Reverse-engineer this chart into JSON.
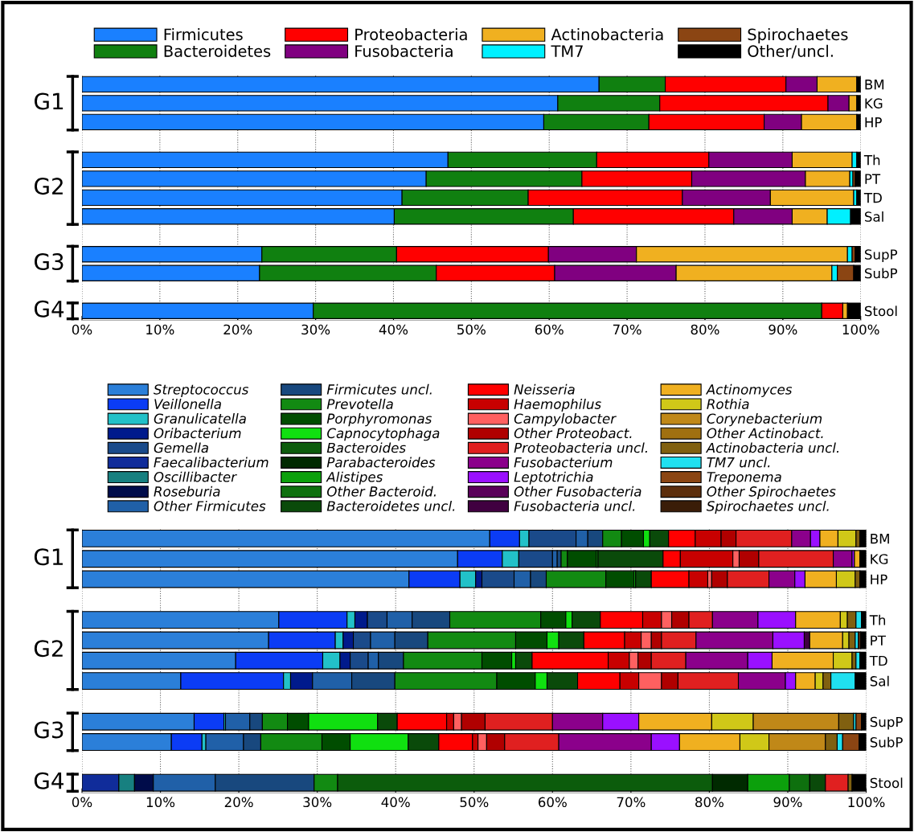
{
  "chart_data": [
    {
      "type": "bar",
      "orientation": "horizontal",
      "stacked": true,
      "grid": "x",
      "legend": "top",
      "categories": [
        "BM",
        "KG",
        "HP",
        null,
        "Th",
        "PT",
        "TD",
        "Sal",
        null,
        "SupP",
        "SubP",
        null,
        "Stool"
      ],
      "xlim": [
        0,
        100
      ],
      "xticks": [
        {
          "value": 0,
          "label": "0%"
        },
        {
          "value": 10,
          "label": "10%"
        },
        {
          "value": 20,
          "label": "20%"
        },
        {
          "value": 30,
          "label": "30%"
        },
        {
          "value": 40,
          "label": "40%"
        },
        {
          "value": 50,
          "label": "50%"
        },
        {
          "value": 60,
          "label": "60%"
        },
        {
          "value": 70,
          "label": "70%"
        },
        {
          "value": 80,
          "label": "80%"
        },
        {
          "value": 90,
          "label": "90%"
        },
        {
          "value": 100,
          "label": "100%"
        }
      ],
      "annotations": [
        "G1",
        "G2",
        "G3",
        "G4"
      ],
      "series": [
        {
          "name": "Firmicutes",
          "color": "#1a80ff",
          "values": [
            66.4,
            61.1,
            59.3,
            null,
            47.0,
            44.2,
            41.1,
            40.1,
            null,
            23.1,
            22.8,
            null,
            29.7
          ]
        },
        {
          "name": "Bacteroidetes",
          "color": "#108010",
          "values": [
            8.5,
            13.1,
            13.5,
            null,
            19.1,
            20.0,
            16.2,
            23.0,
            null,
            17.3,
            22.7,
            null,
            65.3
          ]
        },
        {
          "name": "Proteobacteria",
          "color": "#ff0000",
          "values": [
            15.5,
            21.6,
            14.8,
            null,
            14.4,
            14.1,
            19.8,
            20.6,
            null,
            19.5,
            15.2,
            null,
            2.7
          ]
        },
        {
          "name": "Fusobacteria",
          "color": "#800080",
          "values": [
            4.0,
            2.7,
            4.8,
            null,
            10.7,
            14.6,
            11.3,
            7.5,
            null,
            11.3,
            15.6,
            null,
            0
          ]
        },
        {
          "name": "Actinobacteria",
          "color": "#f0b020",
          "values": [
            5.1,
            1.0,
            7.1,
            null,
            7.7,
            5.7,
            10.7,
            4.5,
            null,
            27.1,
            20.0,
            null,
            0.6
          ]
        },
        {
          "name": "TM7",
          "color": "#00f0ff",
          "values": [
            0,
            0,
            0,
            null,
            0.6,
            0.4,
            0.4,
            3.0,
            null,
            0.6,
            0.7,
            null,
            0
          ]
        },
        {
          "name": "Spirochaetes",
          "color": "#8b4513",
          "values": [
            0,
            0,
            0,
            null,
            0,
            0.3,
            0,
            0,
            null,
            0.4,
            2.1,
            null,
            0
          ]
        },
        {
          "name": "Other/uncl.",
          "color": "#000000",
          "values": [
            0.5,
            0.5,
            0.5,
            null,
            0.5,
            0.7,
            0.5,
            1.3,
            null,
            0.7,
            0.9,
            null,
            1.7
          ]
        }
      ]
    },
    {
      "type": "bar",
      "orientation": "horizontal",
      "stacked": true,
      "grid": "x",
      "legend": "top",
      "categories": [
        "BM",
        "KG",
        "HP",
        null,
        "Th",
        "PT",
        "TD",
        "Sal",
        null,
        "SupP",
        "SubP",
        null,
        "Stool"
      ],
      "xlim": [
        0,
        100
      ],
      "xticks": [
        {
          "value": 0,
          "label": "0%"
        },
        {
          "value": 10,
          "label": "10%"
        },
        {
          "value": 20,
          "label": "20%"
        },
        {
          "value": 30,
          "label": "30%"
        },
        {
          "value": 40,
          "label": "40%"
        },
        {
          "value": 50,
          "label": "50%"
        },
        {
          "value": 60,
          "label": "60%"
        },
        {
          "value": 70,
          "label": "70%"
        },
        {
          "value": 80,
          "label": "80%"
        },
        {
          "value": 90,
          "label": "90%"
        },
        {
          "value": 100,
          "label": "100%"
        }
      ],
      "annotations": [
        "G1",
        "G2",
        "G3",
        "G4"
      ],
      "series": [
        {
          "name": "Streptococcus",
          "color": "#2b7fd9",
          "values": [
            52.0,
            47.9,
            41.7,
            null,
            25.1,
            23.8,
            19.6,
            12.6,
            null,
            14.3,
            11.4,
            null,
            0
          ]
        },
        {
          "name": "Veillonella",
          "color": "#0b3cf5",
          "values": [
            3.8,
            5.7,
            6.5,
            null,
            8.7,
            8.5,
            11.1,
            13.1,
            null,
            3.8,
            3.9,
            null,
            0
          ]
        },
        {
          "name": "Granulicatella",
          "color": "#22c1c8",
          "values": [
            1.2,
            2.1,
            2.0,
            null,
            1.0,
            1.0,
            2.2,
            0.9,
            null,
            0.2,
            0.5,
            null,
            0
          ]
        },
        {
          "name": "Oribacterium",
          "color": "#001a8c",
          "values": [
            0,
            0,
            0.8,
            null,
            1.6,
            1.3,
            1.3,
            2.8,
            null,
            0,
            0,
            null,
            0
          ]
        },
        {
          "name": "Gemella",
          "color": "#1a4a8a",
          "values": [
            6.0,
            4.3,
            4.1,
            null,
            2.5,
            2.2,
            2.3,
            0,
            null,
            0,
            0,
            null,
            0
          ]
        },
        {
          "name": "Faecalibacterium",
          "color": "#102c9a",
          "values": [
            0,
            0,
            0,
            null,
            0,
            0,
            0,
            0,
            null,
            0,
            0,
            null,
            4.7
          ]
        },
        {
          "name": "Oscillibacter",
          "color": "#178080",
          "values": [
            0,
            0,
            0,
            null,
            0,
            0,
            0,
            0,
            null,
            0,
            0,
            null,
            2.0
          ]
        },
        {
          "name": "Roseburia",
          "color": "#000c4a",
          "values": [
            0,
            0,
            0,
            null,
            0,
            0,
            0,
            0,
            null,
            0,
            0,
            null,
            2.4
          ]
        },
        {
          "name": "Other Firmicutes",
          "color": "#2060a8",
          "values": [
            1.5,
            0.6,
            2.1,
            null,
            3.2,
            3.1,
            1.3,
            5.0,
            null,
            3.1,
            4.8,
            null,
            7.9
          ]
        },
        {
          "name": "Firmicutes uncl.",
          "color": "#18487e",
          "values": [
            1.9,
            0.5,
            2.0,
            null,
            4.8,
            4.2,
            3.2,
            5.5,
            null,
            1.6,
            2.2,
            null,
            12.6
          ]
        },
        {
          "name": "Prevotella",
          "color": "#128a12",
          "values": [
            2.4,
            0.8,
            7.6,
            null,
            11.6,
            11.2,
            10.0,
            13.0,
            null,
            3.2,
            7.8,
            null,
            3.0
          ]
        },
        {
          "name": "Porphyromonas",
          "color": "#004d00",
          "values": [
            2.8,
            3.7,
            3.6,
            null,
            3.2,
            4.0,
            3.8,
            4.9,
            null,
            2.7,
            3.6,
            null,
            0
          ]
        },
        {
          "name": "Capnocytophaga",
          "color": "#10e010",
          "values": [
            0.8,
            0.2,
            0.2,
            null,
            0.8,
            1.5,
            0.5,
            1.5,
            null,
            8.8,
            7.4,
            null,
            0
          ]
        },
        {
          "name": "Bacteroides",
          "color": "#0c5c0c",
          "values": [
            0,
            0,
            0,
            null,
            0,
            0,
            0,
            0,
            null,
            0,
            0,
            null,
            47.8
          ]
        },
        {
          "name": "Parabacteroides",
          "color": "#002a00",
          "values": [
            0,
            0,
            0,
            null,
            0,
            0,
            0,
            0,
            null,
            0,
            0,
            null,
            4.5
          ]
        },
        {
          "name": "Alistipes",
          "color": "#0ca00c",
          "values": [
            0,
            0,
            0,
            null,
            0,
            0,
            0,
            0,
            null,
            0,
            0,
            null,
            5.3
          ]
        },
        {
          "name": "Other Bacteroid.",
          "color": "#0e700e",
          "values": [
            0,
            0,
            0,
            null,
            0,
            0,
            0,
            0,
            null,
            0,
            0,
            null,
            2.6
          ]
        },
        {
          "name": "Bacteroidetes uncl.",
          "color": "#0a4a0a",
          "values": [
            2.4,
            8.3,
            2.0,
            null,
            3.6,
            3.2,
            2.1,
            3.9,
            null,
            2.5,
            3.9,
            null,
            2.0
          ]
        },
        {
          "name": "Neisseria",
          "color": "#ff0000",
          "values": [
            3.4,
            2.2,
            4.8,
            null,
            5.4,
            5.2,
            9.7,
            5.4,
            null,
            6.3,
            4.3,
            null,
            0
          ]
        },
        {
          "name": "Haemophilus",
          "color": "#c80000",
          "values": [
            3.3,
            6.7,
            2.4,
            null,
            2.4,
            2.1,
            2.7,
            2.4,
            null,
            0.9,
            0.7,
            null,
            0
          ]
        },
        {
          "name": "Campylobacter",
          "color": "#ff6060",
          "values": [
            0,
            0.8,
            0.5,
            null,
            1.3,
            1.3,
            1.1,
            2.9,
            null,
            1.0,
            1.1,
            null,
            0
          ]
        },
        {
          "name": "Other Proteobact.",
          "color": "#b00000",
          "values": [
            1.9,
            2.5,
            2.0,
            null,
            2.2,
            1.3,
            1.7,
            2.1,
            null,
            3.0,
            2.3,
            null,
            0
          ]
        },
        {
          "name": "Proteobacteria uncl.",
          "color": "#e02020",
          "values": [
            7.1,
            9.5,
            5.3,
            null,
            3.0,
            4.4,
            4.4,
            7.7,
            null,
            8.6,
            6.9,
            null,
            2.9
          ]
        },
        {
          "name": "Fusobacterium",
          "color": "#8b008b",
          "values": [
            2.4,
            2.4,
            3.3,
            null,
            5.8,
            9.8,
            7.9,
            6.0,
            null,
            6.4,
            11.8,
            null,
            0
          ]
        },
        {
          "name": "Leptotrichia",
          "color": "#9a10ff",
          "values": [
            1.2,
            0.3,
            1.3,
            null,
            4.8,
            4.0,
            3.1,
            1.3,
            null,
            4.6,
            3.6,
            null,
            0
          ]
        },
        {
          "name": "Other Fusobacteria",
          "color": "#5a005a",
          "values": [
            0,
            0,
            0,
            null,
            0,
            0,
            0,
            0,
            null,
            0,
            0,
            null,
            0
          ]
        },
        {
          "name": "Fusobacteria uncl.",
          "color": "#400040",
          "values": [
            0,
            0,
            0,
            null,
            0,
            0.7,
            0,
            0,
            null,
            0,
            0,
            null,
            0
          ]
        },
        {
          "name": "Actinomyces",
          "color": "#f0b020",
          "values": [
            2.3,
            0.7,
            4.0,
            null,
            5.7,
            4.2,
            7.8,
            2.5,
            null,
            9.3,
            7.7,
            null,
            0
          ]
        },
        {
          "name": "Rothia",
          "color": "#d0c818",
          "values": [
            2.3,
            0,
            2.4,
            null,
            0.9,
            0.8,
            2.4,
            1.0,
            null,
            5.3,
            3.7,
            null,
            0
          ]
        },
        {
          "name": "Corynebacterium",
          "color": "#c08818",
          "values": [
            0,
            0,
            0,
            null,
            0,
            0,
            0,
            0,
            null,
            10.9,
            7.2,
            null,
            0
          ]
        },
        {
          "name": "Other Actinobact.",
          "color": "#a07010",
          "values": [
            0,
            0,
            0,
            null,
            0,
            0,
            0,
            0,
            null,
            0,
            0,
            null,
            0
          ]
        },
        {
          "name": "Actinobacteria uncl.",
          "color": "#806010",
          "values": [
            0.5,
            0,
            0.6,
            null,
            1.1,
            0.8,
            0.5,
            1.0,
            null,
            1.9,
            1.5,
            null,
            0.5
          ]
        },
        {
          "name": "TM7 uncl.",
          "color": "#20e0f0",
          "values": [
            0,
            0,
            0,
            null,
            0.7,
            0.4,
            0.5,
            3.1,
            null,
            0.3,
            0.7,
            null,
            0
          ]
        },
        {
          "name": "Treponema",
          "color": "#8b4513",
          "values": [
            0,
            0,
            0,
            null,
            0,
            0,
            0,
            0,
            null,
            0.7,
            2.1,
            null,
            0
          ]
        },
        {
          "name": "Other Spirochaetes",
          "color": "#5c2e0c",
          "values": [
            0,
            0,
            0,
            null,
            0,
            0.3,
            0,
            0,
            null,
            0,
            0,
            null,
            0
          ]
        },
        {
          "name": "Spirochaetes uncl.",
          "color": "#3a1d08",
          "values": [
            0,
            0,
            0,
            null,
            0,
            0,
            0,
            0,
            null,
            0,
            0,
            null,
            0
          ]
        },
        {
          "color": "#000000",
          "values": [
            0.8,
            0.8,
            0.8,
            null,
            0.6,
            0.7,
            0.8,
            1.4,
            null,
            0.6,
            0.9,
            null,
            1.8
          ]
        }
      ]
    }
  ]
}
